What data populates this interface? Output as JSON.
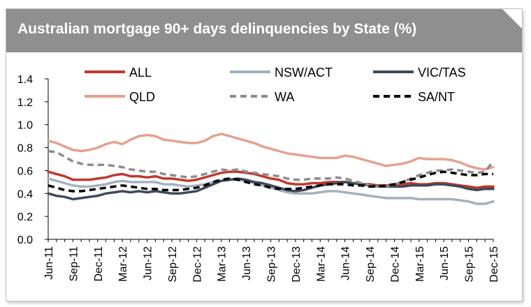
{
  "chart_data": {
    "type": "line",
    "title": "Australian mortgage 90+ days delinquencies by State (%)",
    "xlabel": "",
    "ylabel": "",
    "ylim": [
      0,
      1.4
    ],
    "yticks": [
      "0.0",
      "0.2",
      "0.4",
      "0.6",
      "0.8",
      "1.0",
      "1.2",
      "1.4"
    ],
    "ytick_values": [
      0,
      0.2,
      0.4,
      0.6,
      0.8,
      1.0,
      1.2,
      1.4
    ],
    "x": [
      "Jun-11",
      "Jul-11",
      "Aug-11",
      "Sep-11",
      "Oct-11",
      "Nov-11",
      "Dec-11",
      "Jan-12",
      "Feb-12",
      "Mar-12",
      "Apr-12",
      "May-12",
      "Jun-12",
      "Jul-12",
      "Aug-12",
      "Sep-12",
      "Oct-12",
      "Nov-12",
      "Dec-12",
      "Jan-13",
      "Feb-13",
      "Mar-13",
      "Apr-13",
      "May-13",
      "Jun-13",
      "Jul-13",
      "Aug-13",
      "Sep-13",
      "Oct-13",
      "Nov-13",
      "Dec-13",
      "Jan-14",
      "Feb-14",
      "Mar-14",
      "Apr-14",
      "May-14",
      "Jun-14",
      "Jul-14",
      "Aug-14",
      "Sep-14",
      "Oct-14",
      "Nov-14",
      "Dec-14",
      "Jan-15",
      "Feb-15",
      "Mar-15",
      "Apr-15",
      "May-15",
      "Jun-15",
      "Jul-15",
      "Aug-15",
      "Sep-15",
      "Oct-15",
      "Nov-15",
      "Dec-15"
    ],
    "xtick_labels": [
      "Jun-11",
      "Sep-11",
      "Dec-11",
      "Mar-12",
      "Jun-12",
      "Sep-12",
      "Dec-12",
      "Mar-13",
      "Jun-13",
      "Sep-13",
      "Dec-13",
      "Mar-14",
      "Jun-14",
      "Sep-14",
      "Dec-14",
      "Mar-15",
      "Jun-15",
      "Sep-15",
      "Dec-15"
    ],
    "grid": false,
    "legend_placement": "top",
    "series": [
      {
        "name": "ALL",
        "color": "#c0392b",
        "dash": "solid",
        "values": [
          0.59,
          0.57,
          0.55,
          0.52,
          0.52,
          0.52,
          0.53,
          0.54,
          0.56,
          0.57,
          0.55,
          0.55,
          0.54,
          0.55,
          0.53,
          0.53,
          0.52,
          0.51,
          0.52,
          0.54,
          0.56,
          0.58,
          0.59,
          0.59,
          0.58,
          0.57,
          0.55,
          0.53,
          0.52,
          0.49,
          0.48,
          0.48,
          0.49,
          0.49,
          0.5,
          0.5,
          0.5,
          0.49,
          0.48,
          0.48,
          0.47,
          0.47,
          0.48,
          0.48,
          0.49,
          0.48,
          0.48,
          0.49,
          0.49,
          0.48,
          0.47,
          0.46,
          0.45,
          0.46,
          0.46
        ]
      },
      {
        "name": "NSW/ACT",
        "color": "#a3b1bd",
        "dash": "solid",
        "values": [
          0.53,
          0.51,
          0.49,
          0.47,
          0.46,
          0.46,
          0.47,
          0.48,
          0.5,
          0.51,
          0.5,
          0.5,
          0.5,
          0.5,
          0.48,
          0.48,
          0.47,
          0.46,
          0.47,
          0.48,
          0.5,
          0.51,
          0.52,
          0.52,
          0.51,
          0.49,
          0.47,
          0.45,
          0.43,
          0.41,
          0.4,
          0.4,
          0.4,
          0.41,
          0.42,
          0.42,
          0.41,
          0.4,
          0.39,
          0.38,
          0.37,
          0.36,
          0.36,
          0.36,
          0.36,
          0.35,
          0.35,
          0.35,
          0.35,
          0.35,
          0.34,
          0.33,
          0.31,
          0.31,
          0.33
        ]
      },
      {
        "name": "VIC/TAS",
        "color": "#3d4a59",
        "dash": "solid",
        "values": [
          0.4,
          0.38,
          0.37,
          0.35,
          0.36,
          0.37,
          0.38,
          0.4,
          0.41,
          0.42,
          0.41,
          0.42,
          0.41,
          0.42,
          0.41,
          0.4,
          0.4,
          0.41,
          0.42,
          0.45,
          0.48,
          0.51,
          0.52,
          0.53,
          0.52,
          0.5,
          0.49,
          0.47,
          0.45,
          0.43,
          0.42,
          0.43,
          0.45,
          0.47,
          0.48,
          0.49,
          0.5,
          0.49,
          0.48,
          0.47,
          0.46,
          0.46,
          0.46,
          0.46,
          0.47,
          0.47,
          0.47,
          0.48,
          0.48,
          0.47,
          0.46,
          0.44,
          0.43,
          0.44,
          0.44
        ]
      },
      {
        "name": "QLD",
        "color": "#e6a08e",
        "dash": "solid",
        "values": [
          0.86,
          0.84,
          0.81,
          0.78,
          0.77,
          0.78,
          0.8,
          0.83,
          0.85,
          0.83,
          0.87,
          0.9,
          0.91,
          0.9,
          0.87,
          0.86,
          0.85,
          0.84,
          0.84,
          0.86,
          0.9,
          0.92,
          0.9,
          0.88,
          0.86,
          0.84,
          0.81,
          0.79,
          0.77,
          0.75,
          0.74,
          0.73,
          0.72,
          0.71,
          0.71,
          0.71,
          0.73,
          0.72,
          0.7,
          0.68,
          0.66,
          0.64,
          0.65,
          0.66,
          0.68,
          0.71,
          0.7,
          0.7,
          0.7,
          0.69,
          0.67,
          0.64,
          0.62,
          0.61,
          0.63
        ]
      },
      {
        "name": "WA",
        "color": "#8c8c8c",
        "dash": "dashed",
        "values": [
          0.77,
          0.76,
          0.72,
          0.68,
          0.66,
          0.65,
          0.65,
          0.65,
          0.64,
          0.63,
          0.61,
          0.6,
          0.59,
          0.59,
          0.57,
          0.56,
          0.55,
          0.54,
          0.55,
          0.57,
          0.59,
          0.61,
          0.6,
          0.61,
          0.59,
          0.58,
          0.57,
          0.56,
          0.55,
          0.53,
          0.52,
          0.52,
          0.53,
          0.53,
          0.53,
          0.54,
          0.53,
          0.51,
          0.49,
          0.47,
          0.46,
          0.46,
          0.48,
          0.5,
          0.53,
          0.56,
          0.58,
          0.6,
          0.6,
          0.61,
          0.6,
          0.59,
          0.58,
          0.59,
          0.68
        ]
      },
      {
        "name": "SA/NT",
        "color": "#000000",
        "dash": "dashed",
        "values": [
          0.47,
          0.45,
          0.43,
          0.42,
          0.42,
          0.43,
          0.44,
          0.45,
          0.46,
          0.47,
          0.46,
          0.45,
          0.44,
          0.44,
          0.43,
          0.43,
          0.43,
          0.44,
          0.45,
          0.47,
          0.5,
          0.52,
          0.53,
          0.52,
          0.5,
          0.48,
          0.47,
          0.45,
          0.44,
          0.44,
          0.44,
          0.45,
          0.46,
          0.47,
          0.48,
          0.48,
          0.48,
          0.47,
          0.47,
          0.46,
          0.46,
          0.47,
          0.48,
          0.5,
          0.52,
          0.54,
          0.56,
          0.58,
          0.59,
          0.58,
          0.57,
          0.56,
          0.56,
          0.57,
          0.57
        ]
      }
    ]
  }
}
